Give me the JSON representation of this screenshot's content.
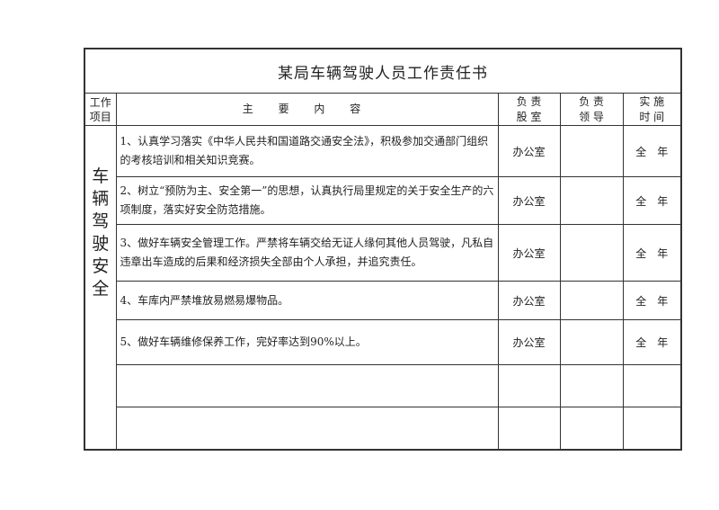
{
  "title": "某局车辆驾驶人员工作责任书",
  "headers": {
    "item": "工作项目",
    "content": "主 要 内 容",
    "dept": "负 责 股 室",
    "leader": "负 责 领 导",
    "time": "实 施 时 间"
  },
  "category": "车辆驾驶安全",
  "rows": [
    {
      "content": "1、认真学习落实《中华人民共和国道路交通安全法》，积极参加交通部门组织的考核培训和相关知识竞赛。",
      "dept": "办公室",
      "leader": "",
      "time": "全年"
    },
    {
      "content": "2、树立“预防为主、安全第一”的思想，认真执行局里规定的关于安全生产的六项制度，落实好安全防范措施。",
      "dept": "办公室",
      "leader": "",
      "time": "全年"
    },
    {
      "content": "3、做好车辆安全管理工作。严禁将车辆交给无证人缘何其他人员驾驶，凡私自违章出车造成的后果和经济损失全部由个人承担，并追究责任。",
      "dept": "办公室",
      "leader": "",
      "time": "全年"
    },
    {
      "content": "4、车库内严禁堆放易燃易爆物品。",
      "dept": "办公室",
      "leader": "",
      "time": "全年"
    },
    {
      "content": "5、做好车辆维修保养工作，完好率达到90%以上。",
      "dept": "办公室",
      "leader": "",
      "time": "全年"
    },
    {
      "content": "",
      "dept": "",
      "leader": "",
      "time": ""
    },
    {
      "content": "",
      "dept": "",
      "leader": "",
      "time": ""
    }
  ]
}
